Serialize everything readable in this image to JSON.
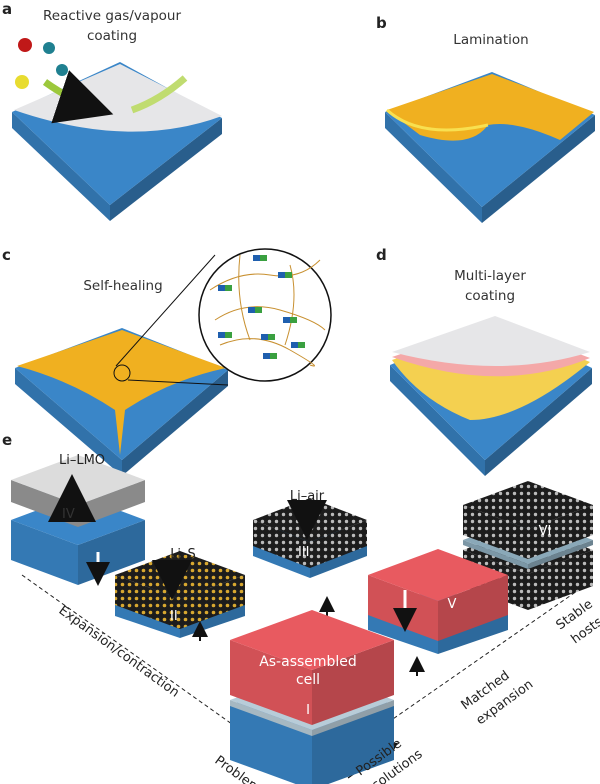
{
  "panels": {
    "a": {
      "letter": "a",
      "title_line1": "Reactive gas/vapour",
      "title_line2": "coating"
    },
    "b": {
      "letter": "b",
      "title": "Lamination"
    },
    "c": {
      "letter": "c",
      "title": "Self-healing"
    },
    "d": {
      "letter": "d",
      "title_line1": "Multi-layer",
      "title_line2": "coating"
    },
    "e": {
      "letter": "e",
      "cells": {
        "I": {
          "numeral": "I",
          "label_line1": "As-assembled",
          "label_line2": "cell"
        },
        "II": {
          "numeral": "II",
          "label": "Li–S"
        },
        "III": {
          "numeral": "III",
          "label": "Li–air"
        },
        "IV": {
          "numeral": "IV",
          "label": "Li–LMO"
        },
        "V": {
          "numeral": "V"
        },
        "VI": {
          "numeral": "VI"
        }
      },
      "axes": {
        "left_axis": "Expansion/contraction",
        "problems": "Problems",
        "solutions_line1": "Possible",
        "solutions_line2": "solutions",
        "matched_line1": "Matched",
        "matched_line2": "expansion",
        "stable_line1": "Stable",
        "stable_line2": "hosts"
      }
    }
  },
  "colors": {
    "lithium_blue": "#3a86c8",
    "lithium_blue_dark": "#2a6aa8",
    "coating_gray": "#e6e6e8",
    "polymer_yellow": "#f0b020",
    "layer_pink": "#f4a8a8",
    "cell_red": "#e85a60",
    "host_black": "#222222",
    "arrow_green": "#9cc83c"
  }
}
